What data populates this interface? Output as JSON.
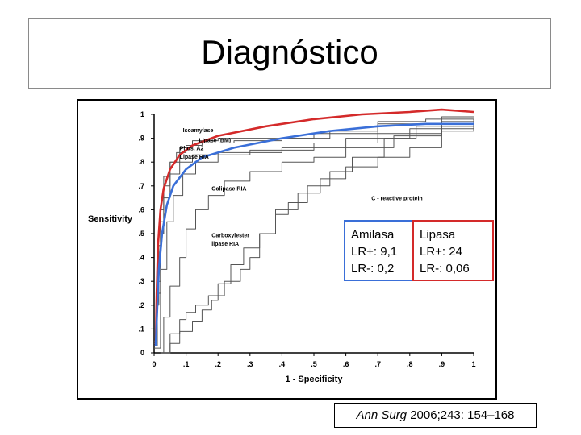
{
  "title": "Diagnóstico",
  "chart_data": {
    "type": "line",
    "xlabel": "1 - Specificity",
    "ylabel": "Sensitivity",
    "xlim": [
      0,
      1
    ],
    "ylim": [
      0,
      1
    ],
    "xticks": [
      "0",
      ".1",
      ".2",
      ".3",
      ".4",
      ".5",
      ".6",
      ".7",
      ".8",
      ".9",
      "1"
    ],
    "yticks": [
      "0",
      ".1",
      ".2",
      ".3",
      ".4",
      ".5",
      ".6",
      ".7",
      ".8",
      ".9",
      "1"
    ],
    "grid": false,
    "series_labels": [
      {
        "text": "Isoamylase",
        "x": 0.09,
        "y": 0.925
      },
      {
        "text": "Lipase (BM)",
        "x": 0.14,
        "y": 0.883
      },
      {
        "text": "Phos. A2",
        "x": 0.08,
        "y": 0.85
      },
      {
        "text": "Lipase RIA",
        "x": 0.08,
        "y": 0.815
      },
      {
        "text": "Colipase RIA",
        "x": 0.18,
        "y": 0.68
      },
      {
        "text": "C - reactive protein",
        "x": 0.68,
        "y": 0.64
      },
      {
        "text": "Carboxylester",
        "x": 0.18,
        "y": 0.485
      },
      {
        "text": "lipase RIA",
        "x": 0.18,
        "y": 0.45
      }
    ],
    "series": [
      {
        "name": "Isoamylase",
        "color": "#555555",
        "points": [
          [
            0,
            0.03
          ],
          [
            0.01,
            0.2
          ],
          [
            0.015,
            0.45
          ],
          [
            0.02,
            0.6
          ],
          [
            0.03,
            0.74
          ],
          [
            0.05,
            0.8
          ],
          [
            0.07,
            0.84
          ],
          [
            0.1,
            0.87
          ],
          [
            0.15,
            0.88
          ],
          [
            0.25,
            0.89
          ],
          [
            0.4,
            0.9
          ],
          [
            0.55,
            0.93
          ],
          [
            0.7,
            0.97
          ],
          [
            0.85,
            0.98
          ],
          [
            1,
            0.98
          ]
        ]
      },
      {
        "name": "Lipase (BM)",
        "color": "#555555",
        "points": [
          [
            0,
            0.05
          ],
          [
            0.01,
            0.3
          ],
          [
            0.02,
            0.55
          ],
          [
            0.03,
            0.7
          ],
          [
            0.05,
            0.8
          ],
          [
            0.08,
            0.86
          ],
          [
            0.12,
            0.89
          ],
          [
            0.2,
            0.9
          ],
          [
            0.3,
            0.9
          ],
          [
            0.5,
            0.92
          ],
          [
            0.7,
            0.96
          ],
          [
            0.9,
            0.99
          ],
          [
            1,
            0.99
          ]
        ]
      },
      {
        "name": "Phos. A2",
        "color": "#555555",
        "points": [
          [
            0,
            0.02
          ],
          [
            0.02,
            0.35
          ],
          [
            0.04,
            0.55
          ],
          [
            0.06,
            0.66
          ],
          [
            0.09,
            0.75
          ],
          [
            0.13,
            0.8
          ],
          [
            0.2,
            0.83
          ],
          [
            0.3,
            0.85
          ],
          [
            0.5,
            0.88
          ],
          [
            0.7,
            0.92
          ],
          [
            0.9,
            0.95
          ],
          [
            1,
            0.96
          ]
        ]
      },
      {
        "name": "Lipase RIA",
        "color": "#555555",
        "points": [
          [
            0,
            0.04
          ],
          [
            0.01,
            0.25
          ],
          [
            0.02,
            0.5
          ],
          [
            0.03,
            0.65
          ],
          [
            0.05,
            0.75
          ],
          [
            0.08,
            0.8
          ],
          [
            0.12,
            0.83
          ],
          [
            0.2,
            0.84
          ],
          [
            0.4,
            0.86
          ],
          [
            0.6,
            0.9
          ],
          [
            0.8,
            0.94
          ],
          [
            1,
            0.97
          ]
        ]
      },
      {
        "name": "Colipase RIA",
        "color": "#555555",
        "points": [
          [
            0.02,
            0
          ],
          [
            0.03,
            0.15
          ],
          [
            0.05,
            0.28
          ],
          [
            0.08,
            0.4
          ],
          [
            0.1,
            0.52
          ],
          [
            0.13,
            0.6
          ],
          [
            0.17,
            0.66
          ],
          [
            0.22,
            0.72
          ],
          [
            0.3,
            0.76
          ],
          [
            0.4,
            0.8
          ],
          [
            0.5,
            0.82
          ],
          [
            0.6,
            0.86
          ],
          [
            0.75,
            0.91
          ],
          [
            0.9,
            0.95
          ],
          [
            1,
            0.97
          ]
        ]
      },
      {
        "name": "Carboxylester lipase RIA",
        "color": "#555555",
        "points": [
          [
            0.02,
            0
          ],
          [
            0.05,
            0.08
          ],
          [
            0.08,
            0.14
          ],
          [
            0.1,
            0.17
          ],
          [
            0.13,
            0.2
          ],
          [
            0.17,
            0.24
          ],
          [
            0.22,
            0.3
          ],
          [
            0.27,
            0.35
          ],
          [
            0.3,
            0.4
          ],
          [
            0.33,
            0.5
          ],
          [
            0.38,
            0.6
          ],
          [
            0.45,
            0.67
          ],
          [
            0.52,
            0.73
          ],
          [
            0.6,
            0.78
          ],
          [
            0.7,
            0.82
          ],
          [
            0.8,
            0.86
          ],
          [
            0.9,
            0.93
          ],
          [
            1,
            0.98
          ]
        ]
      },
      {
        "name": "C - reactive protein",
        "color": "#555555",
        "points": [
          [
            0.03,
            0
          ],
          [
            0.05,
            0.04
          ],
          [
            0.08,
            0.09
          ],
          [
            0.12,
            0.13
          ],
          [
            0.15,
            0.18
          ],
          [
            0.18,
            0.22
          ],
          [
            0.2,
            0.29
          ],
          [
            0.24,
            0.37
          ],
          [
            0.28,
            0.44
          ],
          [
            0.33,
            0.5
          ],
          [
            0.38,
            0.58
          ],
          [
            0.42,
            0.63
          ],
          [
            0.48,
            0.7
          ],
          [
            0.55,
            0.76
          ],
          [
            0.62,
            0.82
          ],
          [
            0.72,
            0.9
          ],
          [
            0.82,
            0.95
          ],
          [
            0.9,
            0.97
          ],
          [
            1,
            0.98
          ]
        ]
      },
      {
        "name": "",
        "color": "#d42a2a",
        "points": [
          [
            0.005,
            0.03
          ],
          [
            0.008,
            0.25
          ],
          [
            0.012,
            0.45
          ],
          [
            0.02,
            0.6
          ],
          [
            0.03,
            0.69
          ],
          [
            0.05,
            0.77
          ],
          [
            0.08,
            0.83
          ],
          [
            0.12,
            0.87
          ],
          [
            0.2,
            0.91
          ],
          [
            0.35,
            0.95
          ],
          [
            0.5,
            0.98
          ],
          [
            0.65,
            1.0
          ],
          [
            0.8,
            1.01
          ],
          [
            0.9,
            1.02
          ],
          [
            1,
            1.01
          ]
        ]
      },
      {
        "name": "",
        "color": "#3a6fd8",
        "points": [
          [
            0.005,
            0.03
          ],
          [
            0.01,
            0.2
          ],
          [
            0.015,
            0.35
          ],
          [
            0.025,
            0.5
          ],
          [
            0.04,
            0.62
          ],
          [
            0.06,
            0.7
          ],
          [
            0.1,
            0.77
          ],
          [
            0.15,
            0.82
          ],
          [
            0.25,
            0.86
          ],
          [
            0.4,
            0.9
          ],
          [
            0.55,
            0.93
          ],
          [
            0.7,
            0.95
          ],
          [
            0.85,
            0.96
          ],
          [
            1,
            0.96
          ]
        ]
      }
    ]
  },
  "lr": {
    "amilasa": {
      "name": "Amilasa",
      "pos": "LR+: 9,1",
      "neg": "LR-: 0,2"
    },
    "lipasa": {
      "name": "Lipasa",
      "pos": "LR+: 24",
      "neg": "LR-: 0,06"
    }
  },
  "reference": {
    "journal": "Ann Surg",
    "citation": " 2006;243: 154–168"
  }
}
